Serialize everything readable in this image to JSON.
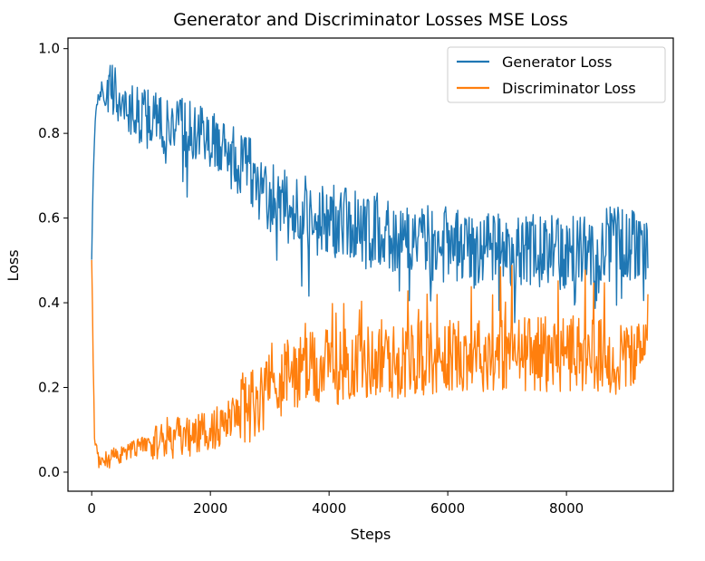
{
  "chart_data": {
    "type": "line",
    "title": "Generator and Discriminator Losses MSE Loss",
    "xlabel": "Steps",
    "ylabel": "Loss",
    "xlim": [
      -400,
      9800
    ],
    "ylim": [
      -0.045,
      1.025
    ],
    "x_ticks": [
      {
        "value": 0,
        "label": "0"
      },
      {
        "value": 2000,
        "label": "2000"
      },
      {
        "value": 4000,
        "label": "4000"
      },
      {
        "value": 6000,
        "label": "6000"
      },
      {
        "value": 8000,
        "label": "8000"
      }
    ],
    "y_ticks": [
      {
        "value": 0.0,
        "label": "0.0"
      },
      {
        "value": 0.2,
        "label": "0.2"
      },
      {
        "value": 0.4,
        "label": "0.4"
      },
      {
        "value": 0.6,
        "label": "0.6"
      },
      {
        "value": 0.8,
        "label": "0.8"
      },
      {
        "value": 1.0,
        "label": "1.0"
      }
    ],
    "grid": false,
    "legend": "top-right",
    "series": [
      {
        "name": "Generator Loss",
        "color": "#1f77b4",
        "x": [
          0,
          20,
          50,
          100,
          200,
          300,
          400,
          500,
          600,
          800,
          1000,
          1200,
          1400,
          1600,
          1800,
          2000,
          2200,
          2400,
          2600,
          2800,
          3000,
          3200,
          3400,
          3600,
          3800,
          4000,
          4200,
          4400,
          4600,
          4800,
          5000,
          5200,
          5400,
          5600,
          5800,
          6000,
          6200,
          6400,
          6600,
          6800,
          7000,
          7200,
          7400,
          7600,
          7800,
          8000,
          8200,
          8400,
          8600,
          8800,
          9000,
          9200,
          9300,
          9380
        ],
        "y": [
          0.52,
          0.65,
          0.8,
          0.89,
          0.91,
          0.9,
          0.89,
          0.88,
          0.86,
          0.84,
          0.83,
          0.82,
          0.83,
          0.82,
          0.8,
          0.78,
          0.77,
          0.75,
          0.72,
          0.69,
          0.65,
          0.63,
          0.62,
          0.61,
          0.6,
          0.6,
          0.59,
          0.58,
          0.57,
          0.57,
          0.56,
          0.56,
          0.55,
          0.55,
          0.54,
          0.54,
          0.54,
          0.53,
          0.53,
          0.52,
          0.52,
          0.52,
          0.52,
          0.52,
          0.52,
          0.52,
          0.53,
          0.53,
          0.53,
          0.54,
          0.54,
          0.54,
          0.54,
          0.47
        ]
      },
      {
        "name": "Discriminator Loss",
        "color": "#ff7f0e",
        "x": [
          0,
          20,
          50,
          100,
          200,
          300,
          400,
          500,
          600,
          800,
          1000,
          1200,
          1400,
          1600,
          1800,
          2000,
          2200,
          2400,
          2600,
          2800,
          3000,
          3200,
          3400,
          3600,
          3800,
          4000,
          4200,
          4400,
          4600,
          4800,
          5000,
          5200,
          5400,
          5600,
          5800,
          6000,
          6200,
          6400,
          6600,
          6800,
          7000,
          7200,
          7400,
          7600,
          7800,
          8000,
          8200,
          8400,
          8600,
          8800,
          9000,
          9200,
          9300,
          9380
        ],
        "y": [
          0.51,
          0.3,
          0.08,
          0.03,
          0.03,
          0.03,
          0.04,
          0.04,
          0.05,
          0.06,
          0.07,
          0.08,
          0.08,
          0.08,
          0.09,
          0.1,
          0.11,
          0.13,
          0.15,
          0.18,
          0.2,
          0.22,
          0.23,
          0.24,
          0.24,
          0.25,
          0.25,
          0.26,
          0.26,
          0.26,
          0.26,
          0.26,
          0.27,
          0.27,
          0.27,
          0.27,
          0.28,
          0.28,
          0.28,
          0.28,
          0.28,
          0.28,
          0.28,
          0.28,
          0.28,
          0.28,
          0.28,
          0.28,
          0.27,
          0.27,
          0.27,
          0.27,
          0.27,
          0.33
        ]
      }
    ]
  }
}
